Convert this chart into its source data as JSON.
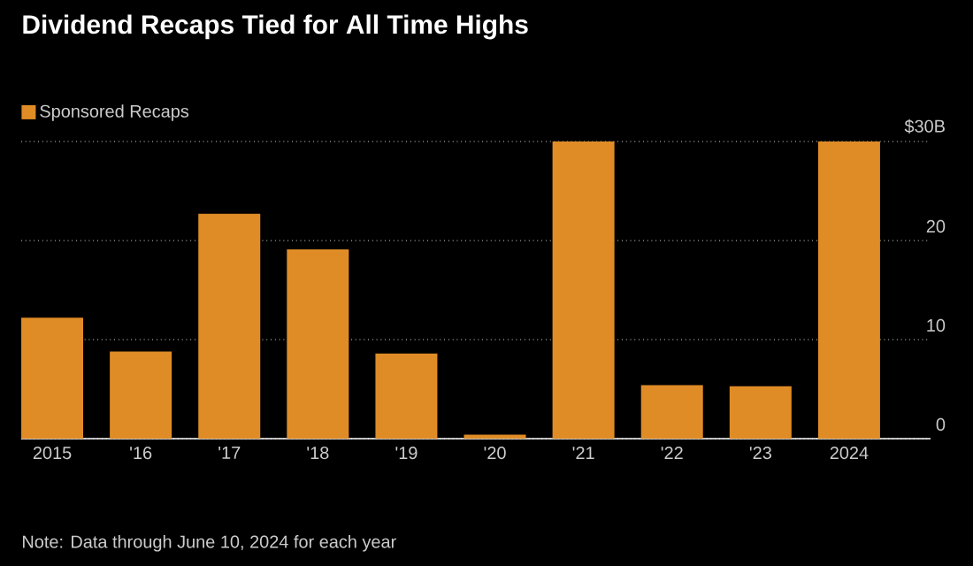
{
  "chart_data": {
    "type": "bar",
    "title": "Dividend Recaps Tied for All Time Highs",
    "categories": [
      "2015",
      "'16",
      "'17",
      "'18",
      "'19",
      "'20",
      "'21",
      "'22",
      "'23",
      "2024"
    ],
    "series": [
      {
        "name": "Sponsored Recaps",
        "color": "#e08c26",
        "values": [
          12.2,
          8.8,
          22.7,
          19.1,
          8.6,
          0.4,
          30,
          5.4,
          5.3,
          30
        ]
      }
    ],
    "ylim": [
      0,
      30
    ],
    "yticks": [
      0,
      10,
      20,
      {
        "value": 30,
        "label": "$30B"
      }
    ],
    "grid": "y",
    "legend": "top left",
    "annotations": [
      "Note: Data through June 10, 2024 for each year"
    ]
  }
}
